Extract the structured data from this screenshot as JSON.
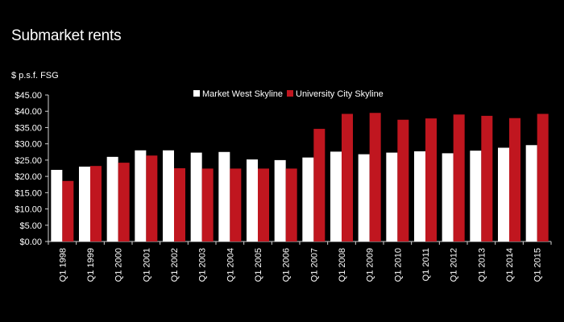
{
  "title": "Submarket rents",
  "unit_label": "$ p.s.f. FSG",
  "colors": {
    "background": "#000000",
    "text": "#ffffff",
    "market_west": "#ffffff",
    "university_city": "#c0161f"
  },
  "chart_data": {
    "type": "bar",
    "title": "Submarket rents",
    "ylabel": "$ p.s.f. FSG",
    "xlabel": "",
    "ylim": [
      0,
      45
    ],
    "yticks": [
      "$0.00",
      "$5.00",
      "$10.00",
      "$15.00",
      "$20.00",
      "$25.00",
      "$30.00",
      "$35.00",
      "$40.00",
      "$45.00"
    ],
    "grid": false,
    "legend": "top-center",
    "categories": [
      "Q1 1998",
      "Q1 1999",
      "Q1 2000",
      "Q1 2001",
      "Q1 2002",
      "Q1 2003",
      "Q1 2004",
      "Q1 2005",
      "Q1 2006",
      "Q1 2007",
      "Q1 2008",
      "Q1 2009",
      "Q1 2010",
      "Q1 2011",
      "Q1 2012",
      "Q1 2013",
      "Q1 2014",
      "Q1 2015"
    ],
    "series": [
      {
        "name": "Market West Skyline",
        "color": "#ffffff",
        "values": [
          22.0,
          23.0,
          26.0,
          28.0,
          28.0,
          27.3,
          27.5,
          25.2,
          25.0,
          25.8,
          27.6,
          26.8,
          27.3,
          27.7,
          27.1,
          27.9,
          28.8,
          29.6
        ]
      },
      {
        "name": "University City Skyline",
        "color": "#c0161f",
        "values": [
          18.6,
          23.2,
          24.2,
          26.4,
          22.5,
          22.4,
          22.4,
          22.4,
          22.4,
          34.6,
          39.2,
          39.5,
          37.4,
          37.8,
          39.0,
          38.6,
          37.9,
          39.2
        ]
      }
    ]
  }
}
